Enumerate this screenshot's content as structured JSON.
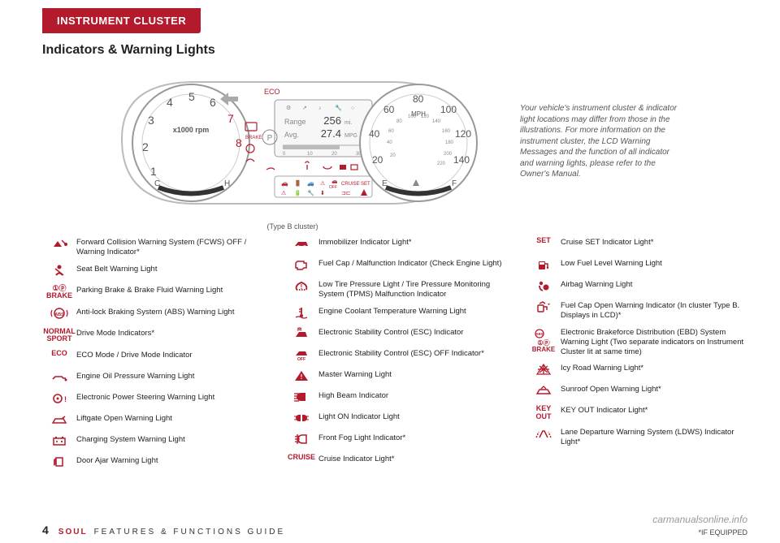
{
  "header": {
    "tab": "INSTRUMENT CLUSTER"
  },
  "subtitle": "Indicators & Warning Lights",
  "cluster": {
    "eco_label": "ECO",
    "rpm_label": "x1000 rpm",
    "rpm_ticks": [
      "1",
      "2",
      "3",
      "4",
      "5",
      "6",
      "7",
      "8"
    ],
    "temp_c": "C",
    "temp_h": "H",
    "brake_text": "BRAKE",
    "lcd": {
      "range_label": "Range",
      "range_val": "256",
      "range_unit": "mi.",
      "avg_label": "Avg.",
      "avg_val": "27.4",
      "avg_unit": "MPG",
      "bar_ticks": [
        "0",
        "10",
        "20",
        "30"
      ],
      "gear": "P"
    },
    "tell_cruise": "CRUISE",
    "tell_set": "SET",
    "tell_off": "OFF",
    "mph_label": "MPH",
    "outer_ticks": [
      "20",
      "40",
      "60",
      "80",
      "100",
      "120",
      "140"
    ],
    "inner_ticks": [
      "20",
      "40",
      "60",
      "80",
      "100",
      "120",
      "140",
      "160",
      "180",
      "200",
      "220"
    ],
    "fuel_e": "E",
    "fuel_f": "F"
  },
  "caption": "(Type B cluster)",
  "disclaimer": "Your vehicle's instrument cluster & indicator light locations may differ from those in the illustrations. For more information on the instrument cluster, the LCD Warning Messages and the function of all indicator and warning lights, please refer to the Owner's Manual.",
  "legend": {
    "col1": [
      {
        "icon": "fcw",
        "label": "",
        "text": "Forward Collision Warning System (FCWS) OFF / Warning Indicator*"
      },
      {
        "icon": "seatbelt",
        "label": "",
        "text": "Seat Belt Warning Light"
      },
      {
        "icon": "text",
        "label": "①ⓟ\nBRAKE",
        "text": "Parking Brake & Brake Fluid Warning Light"
      },
      {
        "icon": "abs-circle",
        "label": "",
        "text": "Anti-lock Braking System (ABS) Warning Light"
      },
      {
        "icon": "text",
        "label": "NORMAL\nSPORT",
        "text": "Drive Mode Indicators*"
      },
      {
        "icon": "text",
        "label": "ECO",
        "text": "ECO Mode / Drive Mode Indicator"
      },
      {
        "icon": "oil",
        "label": "",
        "text": "Engine Oil Pressure Warning Light"
      },
      {
        "icon": "steer",
        "label": "",
        "text": "Electronic Power Steering Warning Light"
      },
      {
        "icon": "liftgate",
        "label": "",
        "text": "Liftgate Open Warning Light"
      },
      {
        "icon": "battery",
        "label": "",
        "text": "Charging System Warning Light"
      },
      {
        "icon": "door",
        "label": "",
        "text": "Door Ajar Warning Light"
      }
    ],
    "col2": [
      {
        "icon": "immob",
        "label": "",
        "text": "Immobilizer Indicator Light*"
      },
      {
        "icon": "engine",
        "label": "",
        "text": "Fuel Cap / Malfunction Indicator (Check Engine Light)"
      },
      {
        "icon": "tpms",
        "label": "",
        "text": " Low Tire Pressure Light / Tire Pressure Monitoring System (TPMS) Malfunction Indicator"
      },
      {
        "icon": "temp",
        "label": "",
        "text": "Engine Coolant Temperature Warning Light"
      },
      {
        "icon": "esc",
        "label": "",
        "text": "Electronic Stability Control (ESC) Indicator"
      },
      {
        "icon": "esc-off",
        "label": "",
        "text": "Electronic Stability Control (ESC) OFF Indicator*"
      },
      {
        "icon": "master",
        "label": "",
        "text": "Master Warning Light"
      },
      {
        "icon": "highbeam",
        "label": "",
        "text": "High Beam Indicator"
      },
      {
        "icon": "lighton",
        "label": "",
        "text": "Light ON Indicator Light"
      },
      {
        "icon": "fog",
        "label": "",
        "text": "Front Fog Light Indicator*"
      },
      {
        "icon": "text",
        "label": "CRUISE",
        "text": "Cruise Indicator Light*"
      }
    ],
    "col3": [
      {
        "icon": "text",
        "label": "SET",
        "text": "Cruise SET Indicator Light*"
      },
      {
        "icon": "fuel",
        "label": "",
        "text": "Low Fuel Level Warning Light"
      },
      {
        "icon": "airbag",
        "label": "",
        "text": "Airbag Warning Light"
      },
      {
        "icon": "fuelcap",
        "label": "",
        "text": "Fuel Cap Open Warning Indicator (In cluster Type B. Displays in LCD)*"
      },
      {
        "icon": "ebd",
        "label": "①ⓟ\nBRAKE",
        "text": "Electronic Brakeforce Distribution (EBD) System Warning Light (Two separate indicators on Instrument Cluster lit at same time)"
      },
      {
        "icon": "icy",
        "label": "",
        "text": "Icy Road Warning Light*"
      },
      {
        "icon": "sunroof",
        "label": "",
        "text": "Sunroof Open Warning Light*"
      },
      {
        "icon": "text",
        "label": "KEY\nOUT",
        "text": "KEY OUT Indicator Light*"
      },
      {
        "icon": "ldws",
        "label": "",
        "text": "Lane Departure Warning System (LDWS) Indicator Light*"
      }
    ]
  },
  "footer": {
    "page": "4",
    "brand": "SOUL",
    "guide": "FEATURES & FUNCTIONS GUIDE",
    "equipped": "*IF EQUIPPED"
  },
  "watermark": "carmanualsonline.info",
  "colors": {
    "accent": "#b31b2c",
    "grey": "#888",
    "text": "#222"
  }
}
